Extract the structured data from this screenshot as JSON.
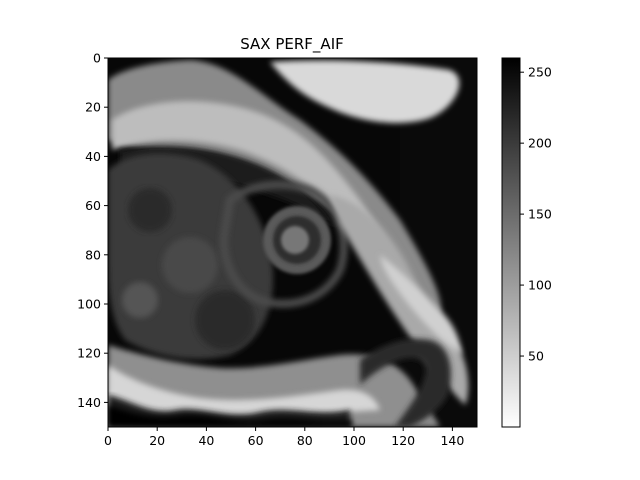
{
  "figure": {
    "title": "SAX PERF_AIF"
  },
  "chart_data": {
    "type": "heatmap",
    "title": "SAX PERF_AIF",
    "xlabel": "",
    "ylabel": "",
    "xlim": [
      0,
      150
    ],
    "ylim": [
      150,
      0
    ],
    "x_ticks": [
      "0",
      "20",
      "40",
      "60",
      "80",
      "100",
      "120",
      "140"
    ],
    "y_ticks": [
      "0",
      "20",
      "40",
      "60",
      "80",
      "100",
      "120",
      "140"
    ],
    "colormap": "gray_r",
    "colorbar": {
      "range": [
        0,
        260
      ],
      "ticks": [
        "50",
        "100",
        "150",
        "200",
        "250"
      ]
    },
    "image_description": "Short-axis cardiac perfusion MRI slice: dark background, bright chest wall at top right and bottom, heart in center with circular left ventricle near x≈75, y≈75"
  }
}
